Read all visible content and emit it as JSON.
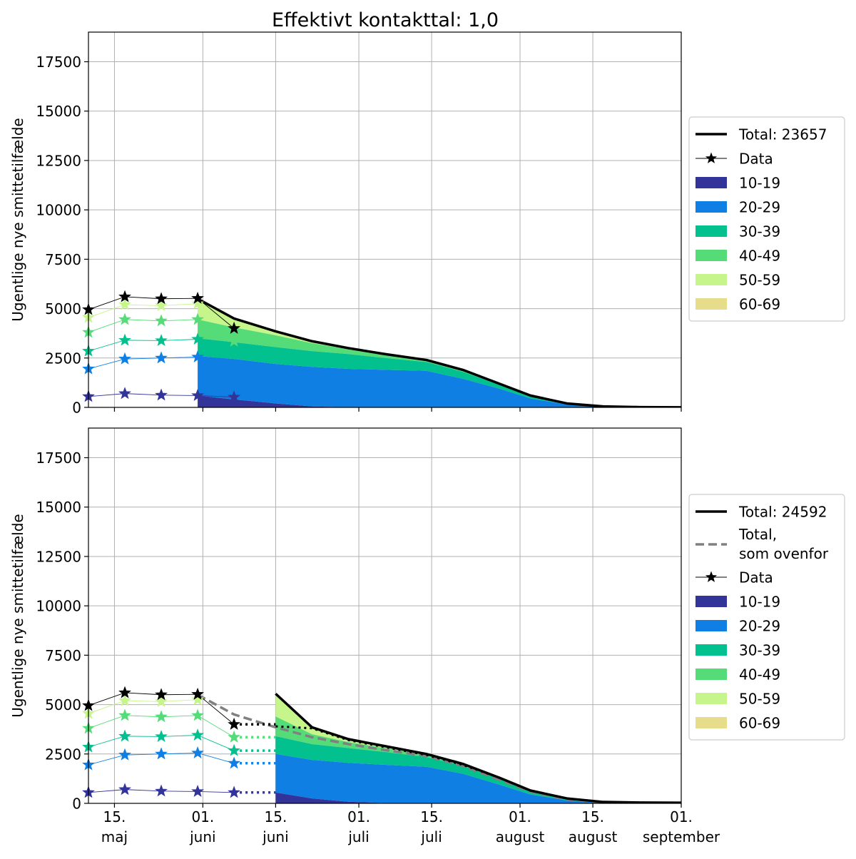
{
  "title": "Effektivt kontakttal: 1,0",
  "colors": {
    "total": "#000000",
    "data": "#000000",
    "total_prev": "#808080",
    "grid": "#b0b0b0"
  },
  "chart_data": [
    {
      "type": "area",
      "panel": "top",
      "ylabel": "Ugentlige nye smittetilfælde",
      "ylim": [
        0,
        19000
      ],
      "yticks": [
        0,
        2500,
        5000,
        7500,
        10000,
        12500,
        15000,
        17500
      ],
      "xlim": [
        "2020-05-10",
        "2020-09-01"
      ],
      "xticks": [
        {
          "date": "2020-05-15",
          "line1": "15.",
          "line2": "maj"
        },
        {
          "date": "2020-06-01",
          "line1": "01.",
          "line2": "juni"
        },
        {
          "date": "2020-06-15",
          "line1": "15.",
          "line2": "juni"
        },
        {
          "date": "2020-07-01",
          "line1": "01.",
          "line2": "juli"
        },
        {
          "date": "2020-07-15",
          "line1": "15.",
          "line2": "juli"
        },
        {
          "date": "2020-08-01",
          "line1": "01.",
          "line2": "august"
        },
        {
          "date": "2020-08-15",
          "line1": "15.",
          "line2": "august"
        },
        {
          "date": "2020-09-01",
          "line1": "01.",
          "line2": "september"
        }
      ],
      "grid": true,
      "legend": {
        "placement": "outside-right",
        "entries": [
          {
            "kind": "total",
            "label": "Total: 23657"
          },
          {
            "kind": "data",
            "label": "Data"
          },
          {
            "kind": "area",
            "label": "10-19",
            "color": "#33349a"
          },
          {
            "kind": "area",
            "label": "20-29",
            "color": "#0f7fe4"
          },
          {
            "kind": "area",
            "label": "30-39",
            "color": "#03c08f"
          },
          {
            "kind": "area",
            "label": "40-49",
            "color": "#55dc78"
          },
          {
            "kind": "area",
            "label": "50-59",
            "color": "#c6f58b"
          },
          {
            "kind": "area",
            "label": "60-69",
            "color": "#e5dd8a"
          }
        ]
      },
      "data_x": [
        "2020-05-10",
        "2020-05-17",
        "2020-05-24",
        "2020-05-31",
        "2020-06-07"
      ],
      "data_series": [
        {
          "name": "10-19",
          "color": "#33349a",
          "values": [
            550,
            700,
            620,
            600,
            520
          ]
        },
        {
          "name": "20-29",
          "color": "#0f7fe4",
          "values": [
            1950,
            2450,
            2500,
            2550,
            null
          ]
        },
        {
          "name": "30-39",
          "color": "#03c08f",
          "values": [
            2850,
            3400,
            3380,
            3450,
            2700
          ]
        },
        {
          "name": "40-49",
          "color": "#55dc78",
          "values": [
            3800,
            4450,
            4380,
            4450,
            3350
          ]
        },
        {
          "name": "50-59",
          "color": "#c6f58b",
          "values": [
            4550,
            5200,
            5150,
            5250,
            null
          ]
        },
        {
          "name": "Data",
          "color": "#000000",
          "values": [
            4950,
            5600,
            5500,
            5520,
            4000
          ]
        }
      ],
      "model_x": [
        "2020-05-31",
        "2020-06-07",
        "2020-06-15",
        "2020-06-22",
        "2020-06-29",
        "2020-07-06",
        "2020-07-14",
        "2020-07-21",
        "2020-07-28",
        "2020-08-03",
        "2020-08-10",
        "2020-08-17",
        "2020-08-24",
        "2020-09-01"
      ],
      "model_series": [
        {
          "name": "10-19",
          "color": "#33349a",
          "values": [
            600,
            400,
            200,
            50,
            0,
            0,
            0,
            0,
            0,
            0,
            0,
            0,
            0,
            0
          ]
        },
        {
          "name": "20-29",
          "color": "#0f7fe4",
          "values": [
            2600,
            2450,
            2200,
            2050,
            1950,
            1900,
            1850,
            1450,
            950,
            450,
            150,
            30,
            0,
            0
          ]
        },
        {
          "name": "30-39",
          "color": "#03c08f",
          "values": [
            3500,
            3300,
            3050,
            2850,
            2700,
            2500,
            2300,
            1800,
            1150,
            550,
            180,
            40,
            10,
            0
          ]
        },
        {
          "name": "40-49",
          "color": "#55dc78",
          "values": [
            4450,
            4050,
            3650,
            3250,
            2950,
            2650,
            2400,
            1850,
            1200,
            580,
            190,
            45,
            10,
            0
          ]
        },
        {
          "name": "50-59",
          "color": "#c6f58b",
          "values": [
            5450,
            4500,
            3850,
            3400,
            3050,
            2750,
            2450,
            1900,
            1220,
            600,
            200,
            50,
            12,
            0
          ]
        },
        {
          "name": "60-69",
          "color": "#e5dd8a",
          "values": [
            5500,
            4520,
            3860,
            3410,
            3060,
            2760,
            2460,
            1910,
            1230,
            605,
            205,
            55,
            15,
            5
          ]
        }
      ],
      "total_line": {
        "x": [
          "2020-05-31",
          "2020-06-07",
          "2020-06-15",
          "2020-06-22",
          "2020-06-29",
          "2020-07-06",
          "2020-07-14",
          "2020-07-21",
          "2020-07-28",
          "2020-08-03",
          "2020-08-10",
          "2020-08-17",
          "2020-08-24",
          "2020-09-01"
        ],
        "values": [
          5500,
          4500,
          3850,
          3350,
          3000,
          2700,
          2400,
          1900,
          1200,
          600,
          200,
          50,
          15,
          5
        ]
      }
    },
    {
      "type": "area",
      "panel": "bottom",
      "ylabel": "Ugentlige nye smittetilfælde",
      "ylim": [
        0,
        19000
      ],
      "yticks": [
        0,
        2500,
        5000,
        7500,
        10000,
        12500,
        15000,
        17500
      ],
      "xlim": [
        "2020-05-10",
        "2020-09-01"
      ],
      "xticks": [
        {
          "date": "2020-05-15",
          "line1": "15.",
          "line2": "maj"
        },
        {
          "date": "2020-06-01",
          "line1": "01.",
          "line2": "juni"
        },
        {
          "date": "2020-06-15",
          "line1": "15.",
          "line2": "juni"
        },
        {
          "date": "2020-07-01",
          "line1": "01.",
          "line2": "juli"
        },
        {
          "date": "2020-07-15",
          "line1": "15.",
          "line2": "juli"
        },
        {
          "date": "2020-08-01",
          "line1": "01.",
          "line2": "august"
        },
        {
          "date": "2020-08-15",
          "line1": "15.",
          "line2": "august"
        },
        {
          "date": "2020-09-01",
          "line1": "01.",
          "line2": "september"
        }
      ],
      "grid": true,
      "legend": {
        "placement": "outside-right",
        "entries": [
          {
            "kind": "total",
            "label": "Total: 24592"
          },
          {
            "kind": "total_prev",
            "label": "Total,\nsom ovenfor"
          },
          {
            "kind": "data",
            "label": "Data"
          },
          {
            "kind": "area",
            "label": "10-19",
            "color": "#33349a"
          },
          {
            "kind": "area",
            "label": "20-29",
            "color": "#0f7fe4"
          },
          {
            "kind": "area",
            "label": "30-39",
            "color": "#03c08f"
          },
          {
            "kind": "area",
            "label": "40-49",
            "color": "#55dc78"
          },
          {
            "kind": "area",
            "label": "50-59",
            "color": "#c6f58b"
          },
          {
            "kind": "area",
            "label": "60-69",
            "color": "#e5dd8a"
          }
        ]
      },
      "data_x": [
        "2020-05-10",
        "2020-05-17",
        "2020-05-24",
        "2020-05-31",
        "2020-06-07"
      ],
      "data_series": [
        {
          "name": "10-19",
          "color": "#33349a",
          "values": [
            550,
            700,
            620,
            600,
            550
          ]
        },
        {
          "name": "20-29",
          "color": "#0f7fe4",
          "values": [
            1950,
            2450,
            2500,
            2550,
            2030
          ]
        },
        {
          "name": "30-39",
          "color": "#03c08f",
          "values": [
            2850,
            3400,
            3380,
            3450,
            2670
          ]
        },
        {
          "name": "40-49",
          "color": "#55dc78",
          "values": [
            3800,
            4450,
            4380,
            4450,
            3350
          ]
        },
        {
          "name": "50-59",
          "color": "#c6f58b",
          "values": [
            4550,
            5200,
            5150,
            5250,
            null
          ]
        },
        {
          "name": "Data",
          "color": "#000000",
          "values": [
            4950,
            5600,
            5500,
            5520,
            4000
          ]
        }
      ],
      "hold_levels": [
        {
          "color": "#33349a",
          "value": 550
        },
        {
          "color": "#0f7fe4",
          "value": 2030
        },
        {
          "color": "#03c08f",
          "value": 2670
        },
        {
          "color": "#55dc78",
          "value": 3350
        },
        {
          "color": "#000000",
          "value": 4000
        }
      ],
      "hold_x": [
        "2020-06-07",
        "2020-06-15"
      ],
      "model_x": [
        "2020-06-15",
        "2020-06-22",
        "2020-06-29",
        "2020-07-06",
        "2020-07-14",
        "2020-07-21",
        "2020-07-28",
        "2020-08-03",
        "2020-08-10",
        "2020-08-17",
        "2020-08-24",
        "2020-09-01"
      ],
      "model_series": [
        {
          "name": "10-19",
          "color": "#33349a",
          "values": [
            550,
            250,
            80,
            20,
            0,
            0,
            0,
            0,
            0,
            0,
            0,
            0
          ]
        },
        {
          "name": "20-29",
          "color": "#0f7fe4",
          "values": [
            2500,
            2200,
            2050,
            1950,
            1850,
            1500,
            950,
            450,
            150,
            30,
            0,
            0
          ]
        },
        {
          "name": "30-39",
          "color": "#03c08f",
          "values": [
            3400,
            3000,
            2800,
            2600,
            2350,
            1900,
            1250,
            620,
            220,
            50,
            10,
            0
          ]
        },
        {
          "name": "40-49",
          "color": "#55dc78",
          "values": [
            4400,
            3500,
            3100,
            2800,
            2450,
            1950,
            1300,
            650,
            230,
            55,
            12,
            0
          ]
        },
        {
          "name": "50-59",
          "color": "#c6f58b",
          "values": [
            5500,
            3850,
            3250,
            2900,
            2500,
            2000,
            1320,
            660,
            240,
            60,
            15,
            5
          ]
        },
        {
          "name": "60-69",
          "color": "#e5dd8a",
          "values": [
            5550,
            3870,
            3260,
            2910,
            2510,
            2010,
            1330,
            665,
            245,
            62,
            16,
            6
          ]
        }
      ],
      "total_line": {
        "x": [
          "2020-06-15",
          "2020-06-22",
          "2020-06-29",
          "2020-07-06",
          "2020-07-14",
          "2020-07-21",
          "2020-07-28",
          "2020-08-03",
          "2020-08-10",
          "2020-08-17",
          "2020-08-24",
          "2020-09-01"
        ],
        "values": [
          5550,
          3850,
          3250,
          2900,
          2500,
          2000,
          1300,
          650,
          250,
          70,
          40,
          30
        ]
      },
      "total_prev_line": {
        "x": [
          "2020-05-31",
          "2020-06-07",
          "2020-06-15",
          "2020-06-22",
          "2020-06-29",
          "2020-07-06",
          "2020-07-14",
          "2020-07-21",
          "2020-07-28",
          "2020-08-03",
          "2020-08-10",
          "2020-08-17",
          "2020-08-24",
          "2020-09-01"
        ],
        "values": [
          5500,
          4500,
          3850,
          3350,
          3000,
          2700,
          2400,
          1900,
          1200,
          600,
          200,
          50,
          15,
          5
        ]
      },
      "total_data_extension": {
        "x": [
          "2020-06-15",
          "2020-06-22",
          "2020-06-29",
          "2020-07-06",
          "2020-07-14",
          "2020-07-21",
          "2020-07-28",
          "2020-08-03",
          "2020-08-10",
          "2020-08-17",
          "2020-08-24",
          "2020-09-01"
        ],
        "values": [
          3900,
          3800,
          3200,
          2850,
          2450,
          1950,
          1300,
          650,
          250,
          70,
          40,
          30
        ]
      }
    }
  ]
}
